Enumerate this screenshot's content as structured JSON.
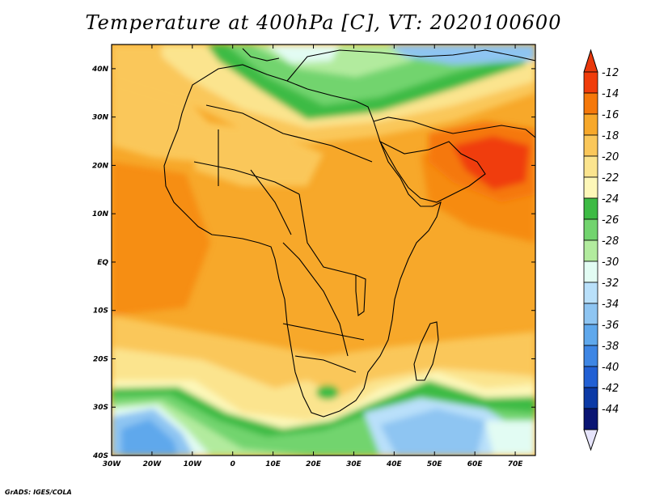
{
  "title": "Temperature at 400hPa [C], VT: 2020100600",
  "credit": "GrADS: IGES/COLA",
  "map": {
    "lon_labels": [
      "30W",
      "20W",
      "10W",
      "0",
      "10E",
      "20E",
      "30E",
      "40E",
      "50E",
      "60E",
      "70E"
    ],
    "lat_labels": [
      "40N",
      "30N",
      "20N",
      "10N",
      "EQ",
      "10S",
      "20S",
      "30S",
      "40S"
    ],
    "lon_range": [
      -30,
      75
    ],
    "lat_range": [
      -40,
      45
    ]
  },
  "colorbar": {
    "labels": [
      "-12",
      "-14",
      "-16",
      "-18",
      "-20",
      "-22",
      "-24",
      "-26",
      "-28",
      "-30",
      "-32",
      "-34",
      "-36",
      "-38",
      "-40",
      "-42",
      "-44"
    ],
    "colors": [
      "#f03c0a",
      "#f5780a",
      "#f7a82a",
      "#fac75a",
      "#fbe48e",
      "#fdf7b8",
      "#3dbb44",
      "#72d46e",
      "#b2eb9e",
      "#e2fcf3",
      "#b9e0fa",
      "#8ec5f2",
      "#5fa8ec",
      "#3e86e4",
      "#2260d4",
      "#0c3aa6",
      "#0a1573"
    ],
    "top_color": "#e9380c",
    "bottom_color": "#e6e4fb"
  }
}
